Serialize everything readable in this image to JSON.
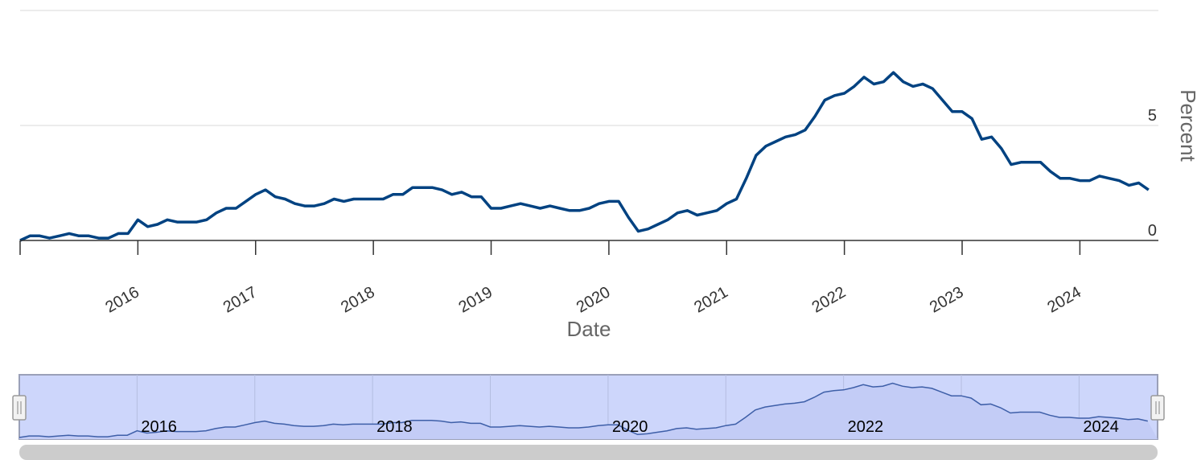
{
  "chart_data": {
    "type": "line",
    "title": "",
    "xlabel": "Date",
    "ylabel": "Percent",
    "x_tick_labels": [
      "2016",
      "2017",
      "2018",
      "2019",
      "2020",
      "2021",
      "2022",
      "2023",
      "2024"
    ],
    "y_tick_labels": [
      "0",
      "5"
    ],
    "ylim": [
      0,
      10
    ],
    "xlim": [
      "2015-01-01",
      "2024-09-01"
    ],
    "grid": true,
    "legend": "none",
    "color": "#004281",
    "series": [
      {
        "x": [
          "2015-01",
          "2015-02",
          "2015-03",
          "2015-04",
          "2015-05",
          "2015-06",
          "2015-07",
          "2015-08",
          "2015-09",
          "2015-10",
          "2015-11",
          "2015-12",
          "2016-01",
          "2016-02",
          "2016-03",
          "2016-04",
          "2016-05",
          "2016-06",
          "2016-07",
          "2016-08",
          "2016-09",
          "2016-10",
          "2016-11",
          "2016-12",
          "2017-01",
          "2017-02",
          "2017-03",
          "2017-04",
          "2017-05",
          "2017-06",
          "2017-07",
          "2017-08",
          "2017-09",
          "2017-10",
          "2017-11",
          "2017-12",
          "2018-01",
          "2018-02",
          "2018-03",
          "2018-04",
          "2018-05",
          "2018-06",
          "2018-07",
          "2018-08",
          "2018-09",
          "2018-10",
          "2018-11",
          "2018-12",
          "2019-01",
          "2019-02",
          "2019-03",
          "2019-04",
          "2019-05",
          "2019-06",
          "2019-07",
          "2019-08",
          "2019-09",
          "2019-10",
          "2019-11",
          "2019-12",
          "2020-01",
          "2020-02",
          "2020-03",
          "2020-04",
          "2020-05",
          "2020-06",
          "2020-07",
          "2020-08",
          "2020-09",
          "2020-10",
          "2020-11",
          "2020-12",
          "2021-01",
          "2021-02",
          "2021-03",
          "2021-04",
          "2021-05",
          "2021-06",
          "2021-07",
          "2021-08",
          "2021-09",
          "2021-10",
          "2021-11",
          "2021-12",
          "2022-01",
          "2022-02",
          "2022-03",
          "2022-04",
          "2022-05",
          "2022-06",
          "2022-07",
          "2022-08",
          "2022-09",
          "2022-10",
          "2022-11",
          "2022-12",
          "2023-01",
          "2023-02",
          "2023-03",
          "2023-04",
          "2023-05",
          "2023-06",
          "2023-07",
          "2023-08",
          "2023-09",
          "2023-10",
          "2023-11",
          "2023-12",
          "2024-01",
          "2024-02",
          "2024-03",
          "2024-04",
          "2024-05",
          "2024-06",
          "2024-07",
          "2024-08"
        ],
        "values": [
          0.0,
          0.2,
          0.2,
          0.1,
          0.2,
          0.3,
          0.2,
          0.2,
          0.1,
          0.1,
          0.3,
          0.3,
          0.9,
          0.6,
          0.7,
          0.9,
          0.8,
          0.8,
          0.8,
          0.9,
          1.2,
          1.4,
          1.4,
          1.7,
          2.0,
          2.2,
          1.9,
          1.8,
          1.6,
          1.5,
          1.5,
          1.6,
          1.8,
          1.7,
          1.8,
          1.8,
          1.8,
          1.8,
          2.0,
          2.0,
          2.3,
          2.3,
          2.3,
          2.2,
          2.0,
          2.1,
          1.9,
          1.9,
          1.4,
          1.4,
          1.5,
          1.6,
          1.5,
          1.4,
          1.5,
          1.4,
          1.3,
          1.3,
          1.4,
          1.6,
          1.7,
          1.7,
          1.0,
          0.4,
          0.5,
          0.7,
          0.9,
          1.2,
          1.3,
          1.1,
          1.2,
          1.3,
          1.6,
          1.8,
          2.7,
          3.7,
          4.1,
          4.3,
          4.5,
          4.6,
          4.8,
          5.4,
          6.1,
          6.3,
          6.4,
          6.7,
          7.1,
          6.8,
          6.9,
          7.3,
          6.9,
          6.7,
          6.8,
          6.6,
          6.1,
          5.6,
          5.6,
          5.3,
          4.4,
          4.5,
          4.0,
          3.3,
          3.4,
          3.4,
          3.4,
          3.0,
          2.7,
          2.7,
          2.6,
          2.6,
          2.8,
          2.7,
          2.6,
          2.4,
          2.5,
          2.2
        ]
      }
    ]
  }
}
